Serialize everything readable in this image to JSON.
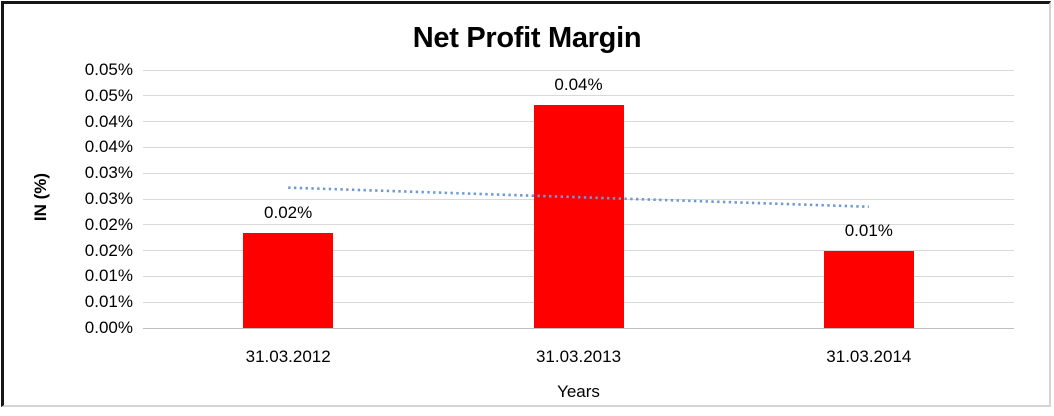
{
  "chart_data": {
    "type": "bar",
    "title": "Net Profit Margin",
    "xlabel": "Years",
    "ylabel": "IN (%)",
    "categories": [
      "31.03.2012",
      "31.03.2013",
      "31.03.2014"
    ],
    "values": [
      0.0185,
      0.0432,
      0.015
    ],
    "data_labels": [
      "0.02%",
      "0.04%",
      "0.01%"
    ],
    "value_unit": "%",
    "ylim": [
      0,
      0.05
    ],
    "y_tick_labels_top_to_bottom": [
      "0.05%",
      "0.05%",
      "0.04%",
      "0.04%",
      "0.03%",
      "0.03%",
      "0.02%",
      "0.02%",
      "0.01%",
      "0.01%",
      "0.00%"
    ],
    "grid": true,
    "legend": false,
    "bar_color": "#FF0000",
    "trendline": {
      "type": "linear",
      "style": "dotted",
      "color": "#6C9BD2",
      "start_value": 0.0272,
      "end_value": 0.0235
    },
    "colors": {
      "gridline": "#D9D9D9",
      "axis_line": "#BFBFBF",
      "text": "#000000",
      "background": "#FFFFFF",
      "frame_dark": "#161616",
      "frame_light": "#D4D4D4"
    }
  }
}
